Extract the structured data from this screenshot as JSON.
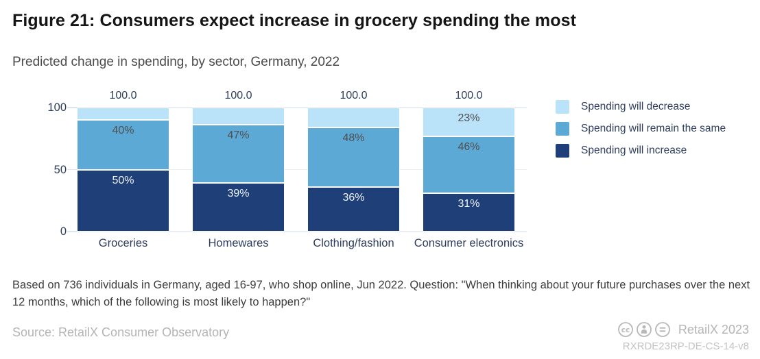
{
  "header": {
    "figure_title": "Figure 21: Consumers expect increase in grocery spending the most",
    "subtitle": "Predicted change in spending, by sector, Germany, 2022"
  },
  "chart_data": {
    "type": "bar",
    "variant": "stacked-vertical",
    "title": "Predicted change in spending, by sector, Germany, 2022",
    "categories": [
      "Groceries",
      "Homewares",
      "Clothing/fashion",
      "Consumer electronics"
    ],
    "series": [
      {
        "name": "Spending will increase",
        "color": "#1e3f77",
        "label_color": "#f2f5fa",
        "values": [
          50,
          39,
          36,
          31
        ],
        "labels": [
          "50%",
          "39%",
          "36%",
          "31%"
        ]
      },
      {
        "name": "Spending will remain the same",
        "color": "#5ca9d6",
        "label_color": "#4f4f4f",
        "values": [
          40,
          47,
          48,
          46
        ],
        "labels": [
          "40%",
          "47%",
          "48%",
          "46%"
        ]
      },
      {
        "name": "Spending will decrease",
        "color": "#bae2f8",
        "label_color": "#4f4f4f",
        "values": [
          10,
          14,
          16,
          23
        ],
        "labels": [
          "",
          "",
          "",
          "23%"
        ]
      }
    ],
    "bar_totals": [
      "100.0",
      "100.0",
      "100.0",
      "100.0"
    ],
    "ylim": [
      0,
      100
    ],
    "y_ticks": [
      "0",
      "50",
      "100"
    ],
    "grid": true,
    "legend_position": "right",
    "legend": [
      {
        "label": "Spending will decrease",
        "color": "#bae2f8"
      },
      {
        "label": "Spending will remain the same",
        "color": "#5ca9d6"
      },
      {
        "label": "Spending will increase",
        "color": "#1e3f77"
      }
    ]
  },
  "footnote": "Based on 736 individuals in Germany, aged 16-97, who shop online, Jun 2022. Question: \"When thinking about your future purchases over the next 12 months, which of the following is most likely to happen?\"",
  "footer": {
    "source": "Source: RetailX Consumer Observatory",
    "brand": "RetailX 2023",
    "reference_code": "RXRDE23RP-DE-CS-14-v8",
    "license_icons": [
      "cc-icon",
      "cc-by-icon",
      "cc-nd-icon"
    ]
  }
}
